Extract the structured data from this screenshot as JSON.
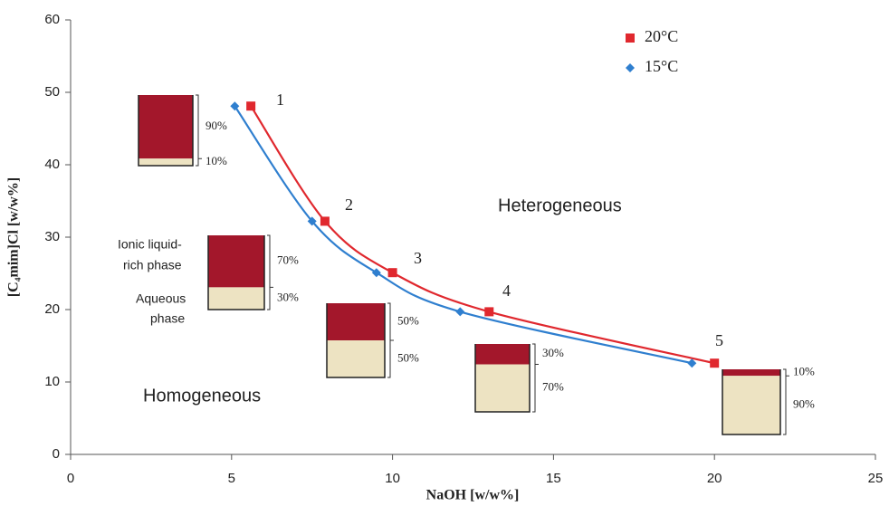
{
  "chart_data": {
    "type": "line",
    "xlabel": "NaOH [w/w%]",
    "ylabel": "[C₄mim]Cl [w/w%]",
    "xlim": [
      0,
      25
    ],
    "xticks": [
      0,
      5,
      10,
      15,
      20,
      25
    ],
    "ylim": [
      0,
      60
    ],
    "yticks": [
      0,
      10,
      20,
      30,
      40,
      50,
      60
    ],
    "legend": "upper right",
    "series": [
      {
        "name": "20°C",
        "color": "#e0282e",
        "marker": "square",
        "x": [
          5.6,
          7.9,
          10.0,
          13.0,
          20.0
        ],
        "values": [
          48.1,
          32.2,
          25.1,
          19.7,
          12.6
        ]
      },
      {
        "name": "15°C",
        "color": "#2f7fcf",
        "marker": "diamond",
        "x": [
          5.1,
          7.5,
          9.5,
          12.1,
          19.3
        ],
        "values": [
          48.1,
          32.2,
          25.1,
          19.7,
          12.6
        ]
      }
    ],
    "annotations": [
      "1",
      "2",
      "3",
      "4",
      "5",
      "Heterogeneous",
      "Homogeneous",
      "Ionic liquid-",
      "rich phase",
      "Aqueous",
      "phase"
    ],
    "beakers": [
      {
        "top": "90%",
        "bottom": "10%"
      },
      {
        "top": "70%",
        "bottom": "30%"
      },
      {
        "top": "50%",
        "bottom": "50%"
      },
      {
        "top": "30%",
        "bottom": "70%"
      },
      {
        "top": "10%",
        "bottom": "90%"
      }
    ]
  }
}
